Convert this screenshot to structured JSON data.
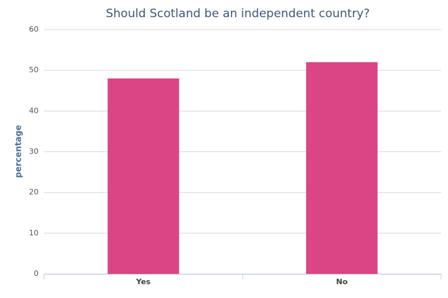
{
  "chart_data": {
    "type": "bar",
    "title": "Should Scotland be an independent country?",
    "y_label": "percentage",
    "categories": [
      "Yes",
      "No"
    ],
    "values": [
      48,
      52
    ],
    "color": "#dc4585",
    "ylim": [
      0,
      60
    ],
    "yticks": [
      0,
      10,
      20,
      30,
      40,
      50,
      60
    ],
    "grid": true
  }
}
